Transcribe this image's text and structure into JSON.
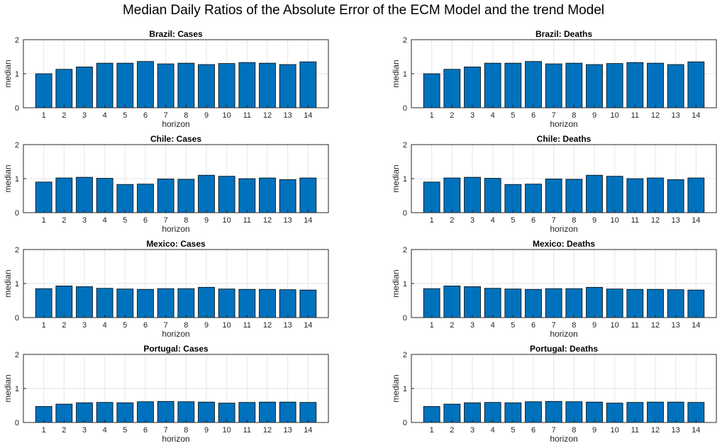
{
  "title": "Median Daily Ratios of the Absolute Error of the ECM Model and the trend Model",
  "chart_data": [
    {
      "type": "bar",
      "title": "Brazil: Cases",
      "xlabel": "horizon",
      "ylabel": "median",
      "categories": [
        "1",
        "2",
        "3",
        "4",
        "5",
        "6",
        "7",
        "8",
        "9",
        "10",
        "11",
        "12",
        "13",
        "14"
      ],
      "values": [
        1.0,
        1.13,
        1.2,
        1.31,
        1.31,
        1.36,
        1.29,
        1.31,
        1.27,
        1.3,
        1.33,
        1.31,
        1.27,
        1.35
      ],
      "ylim": [
        0,
        2
      ],
      "yticks": [
        "0",
        "1",
        "2"
      ],
      "grid": true,
      "bar_color": "#0072BD"
    },
    {
      "type": "bar",
      "title": "Brazil: Deaths",
      "xlabel": "horizon",
      "ylabel": "median",
      "categories": [
        "1",
        "2",
        "3",
        "4",
        "5",
        "6",
        "7",
        "8",
        "9",
        "10",
        "11",
        "12",
        "13",
        "14"
      ],
      "values": [
        1.0,
        1.13,
        1.2,
        1.31,
        1.31,
        1.36,
        1.29,
        1.31,
        1.27,
        1.3,
        1.33,
        1.31,
        1.27,
        1.35
      ],
      "ylim": [
        0,
        2
      ],
      "yticks": [
        "0",
        "1",
        "2"
      ],
      "grid": true,
      "bar_color": "#0072BD"
    },
    {
      "type": "bar",
      "title": "Chile: Cases",
      "xlabel": "horizon",
      "ylabel": "median",
      "categories": [
        "1",
        "2",
        "3",
        "4",
        "5",
        "6",
        "7",
        "8",
        "9",
        "10",
        "11",
        "12",
        "13",
        "14"
      ],
      "values": [
        0.9,
        1.02,
        1.04,
        1.01,
        0.83,
        0.84,
        0.99,
        0.98,
        1.1,
        1.07,
        1.0,
        1.02,
        0.97,
        1.02
      ],
      "ylim": [
        0,
        2
      ],
      "yticks": [
        "0",
        "1",
        "2"
      ],
      "grid": true,
      "bar_color": "#0072BD"
    },
    {
      "type": "bar",
      "title": "Chile: Deaths",
      "xlabel": "horizon",
      "ylabel": "median",
      "categories": [
        "1",
        "2",
        "3",
        "4",
        "5",
        "6",
        "7",
        "8",
        "9",
        "10",
        "11",
        "12",
        "13",
        "14"
      ],
      "values": [
        0.9,
        1.02,
        1.04,
        1.01,
        0.83,
        0.84,
        0.99,
        0.98,
        1.1,
        1.07,
        1.0,
        1.02,
        0.97,
        1.02
      ],
      "ylim": [
        0,
        2
      ],
      "yticks": [
        "0",
        "1",
        "2"
      ],
      "grid": true,
      "bar_color": "#0072BD"
    },
    {
      "type": "bar",
      "title": "Mexico: Cases",
      "xlabel": "horizon",
      "ylabel": "median",
      "categories": [
        "1",
        "2",
        "3",
        "4",
        "5",
        "6",
        "7",
        "8",
        "9",
        "10",
        "11",
        "12",
        "13",
        "14"
      ],
      "values": [
        0.85,
        0.93,
        0.91,
        0.86,
        0.84,
        0.83,
        0.85,
        0.85,
        0.89,
        0.84,
        0.83,
        0.83,
        0.82,
        0.81
      ],
      "ylim": [
        0,
        2
      ],
      "yticks": [
        "0",
        "1",
        "2"
      ],
      "grid": true,
      "bar_color": "#0072BD"
    },
    {
      "type": "bar",
      "title": "Mexico: Deaths",
      "xlabel": "horizon",
      "ylabel": "median",
      "categories": [
        "1",
        "2",
        "3",
        "4",
        "5",
        "6",
        "7",
        "8",
        "9",
        "10",
        "11",
        "12",
        "13",
        "14"
      ],
      "values": [
        0.85,
        0.93,
        0.91,
        0.86,
        0.84,
        0.83,
        0.85,
        0.85,
        0.89,
        0.84,
        0.83,
        0.83,
        0.82,
        0.81
      ],
      "ylim": [
        0,
        2
      ],
      "yticks": [
        "0",
        "1",
        "2"
      ],
      "grid": true,
      "bar_color": "#0072BD"
    },
    {
      "type": "bar",
      "title": "Portugal: Cases",
      "xlabel": "horizon",
      "ylabel": "median",
      "categories": [
        "1",
        "2",
        "3",
        "4",
        "5",
        "6",
        "7",
        "8",
        "9",
        "10",
        "11",
        "12",
        "13",
        "14"
      ],
      "values": [
        0.47,
        0.54,
        0.58,
        0.59,
        0.58,
        0.61,
        0.62,
        0.61,
        0.6,
        0.57,
        0.59,
        0.6,
        0.6,
        0.59
      ],
      "ylim": [
        0,
        2
      ],
      "yticks": [
        "0",
        "1",
        "2"
      ],
      "grid": true,
      "bar_color": "#0072BD"
    },
    {
      "type": "bar",
      "title": "Portugal: Deaths",
      "xlabel": "horizon",
      "ylabel": "median",
      "categories": [
        "1",
        "2",
        "3",
        "4",
        "5",
        "6",
        "7",
        "8",
        "9",
        "10",
        "11",
        "12",
        "13",
        "14"
      ],
      "values": [
        0.47,
        0.54,
        0.58,
        0.59,
        0.58,
        0.61,
        0.62,
        0.61,
        0.6,
        0.57,
        0.59,
        0.6,
        0.6,
        0.59
      ],
      "ylim": [
        0,
        2
      ],
      "yticks": [
        "0",
        "1",
        "2"
      ],
      "grid": true,
      "bar_color": "#0072BD"
    }
  ]
}
